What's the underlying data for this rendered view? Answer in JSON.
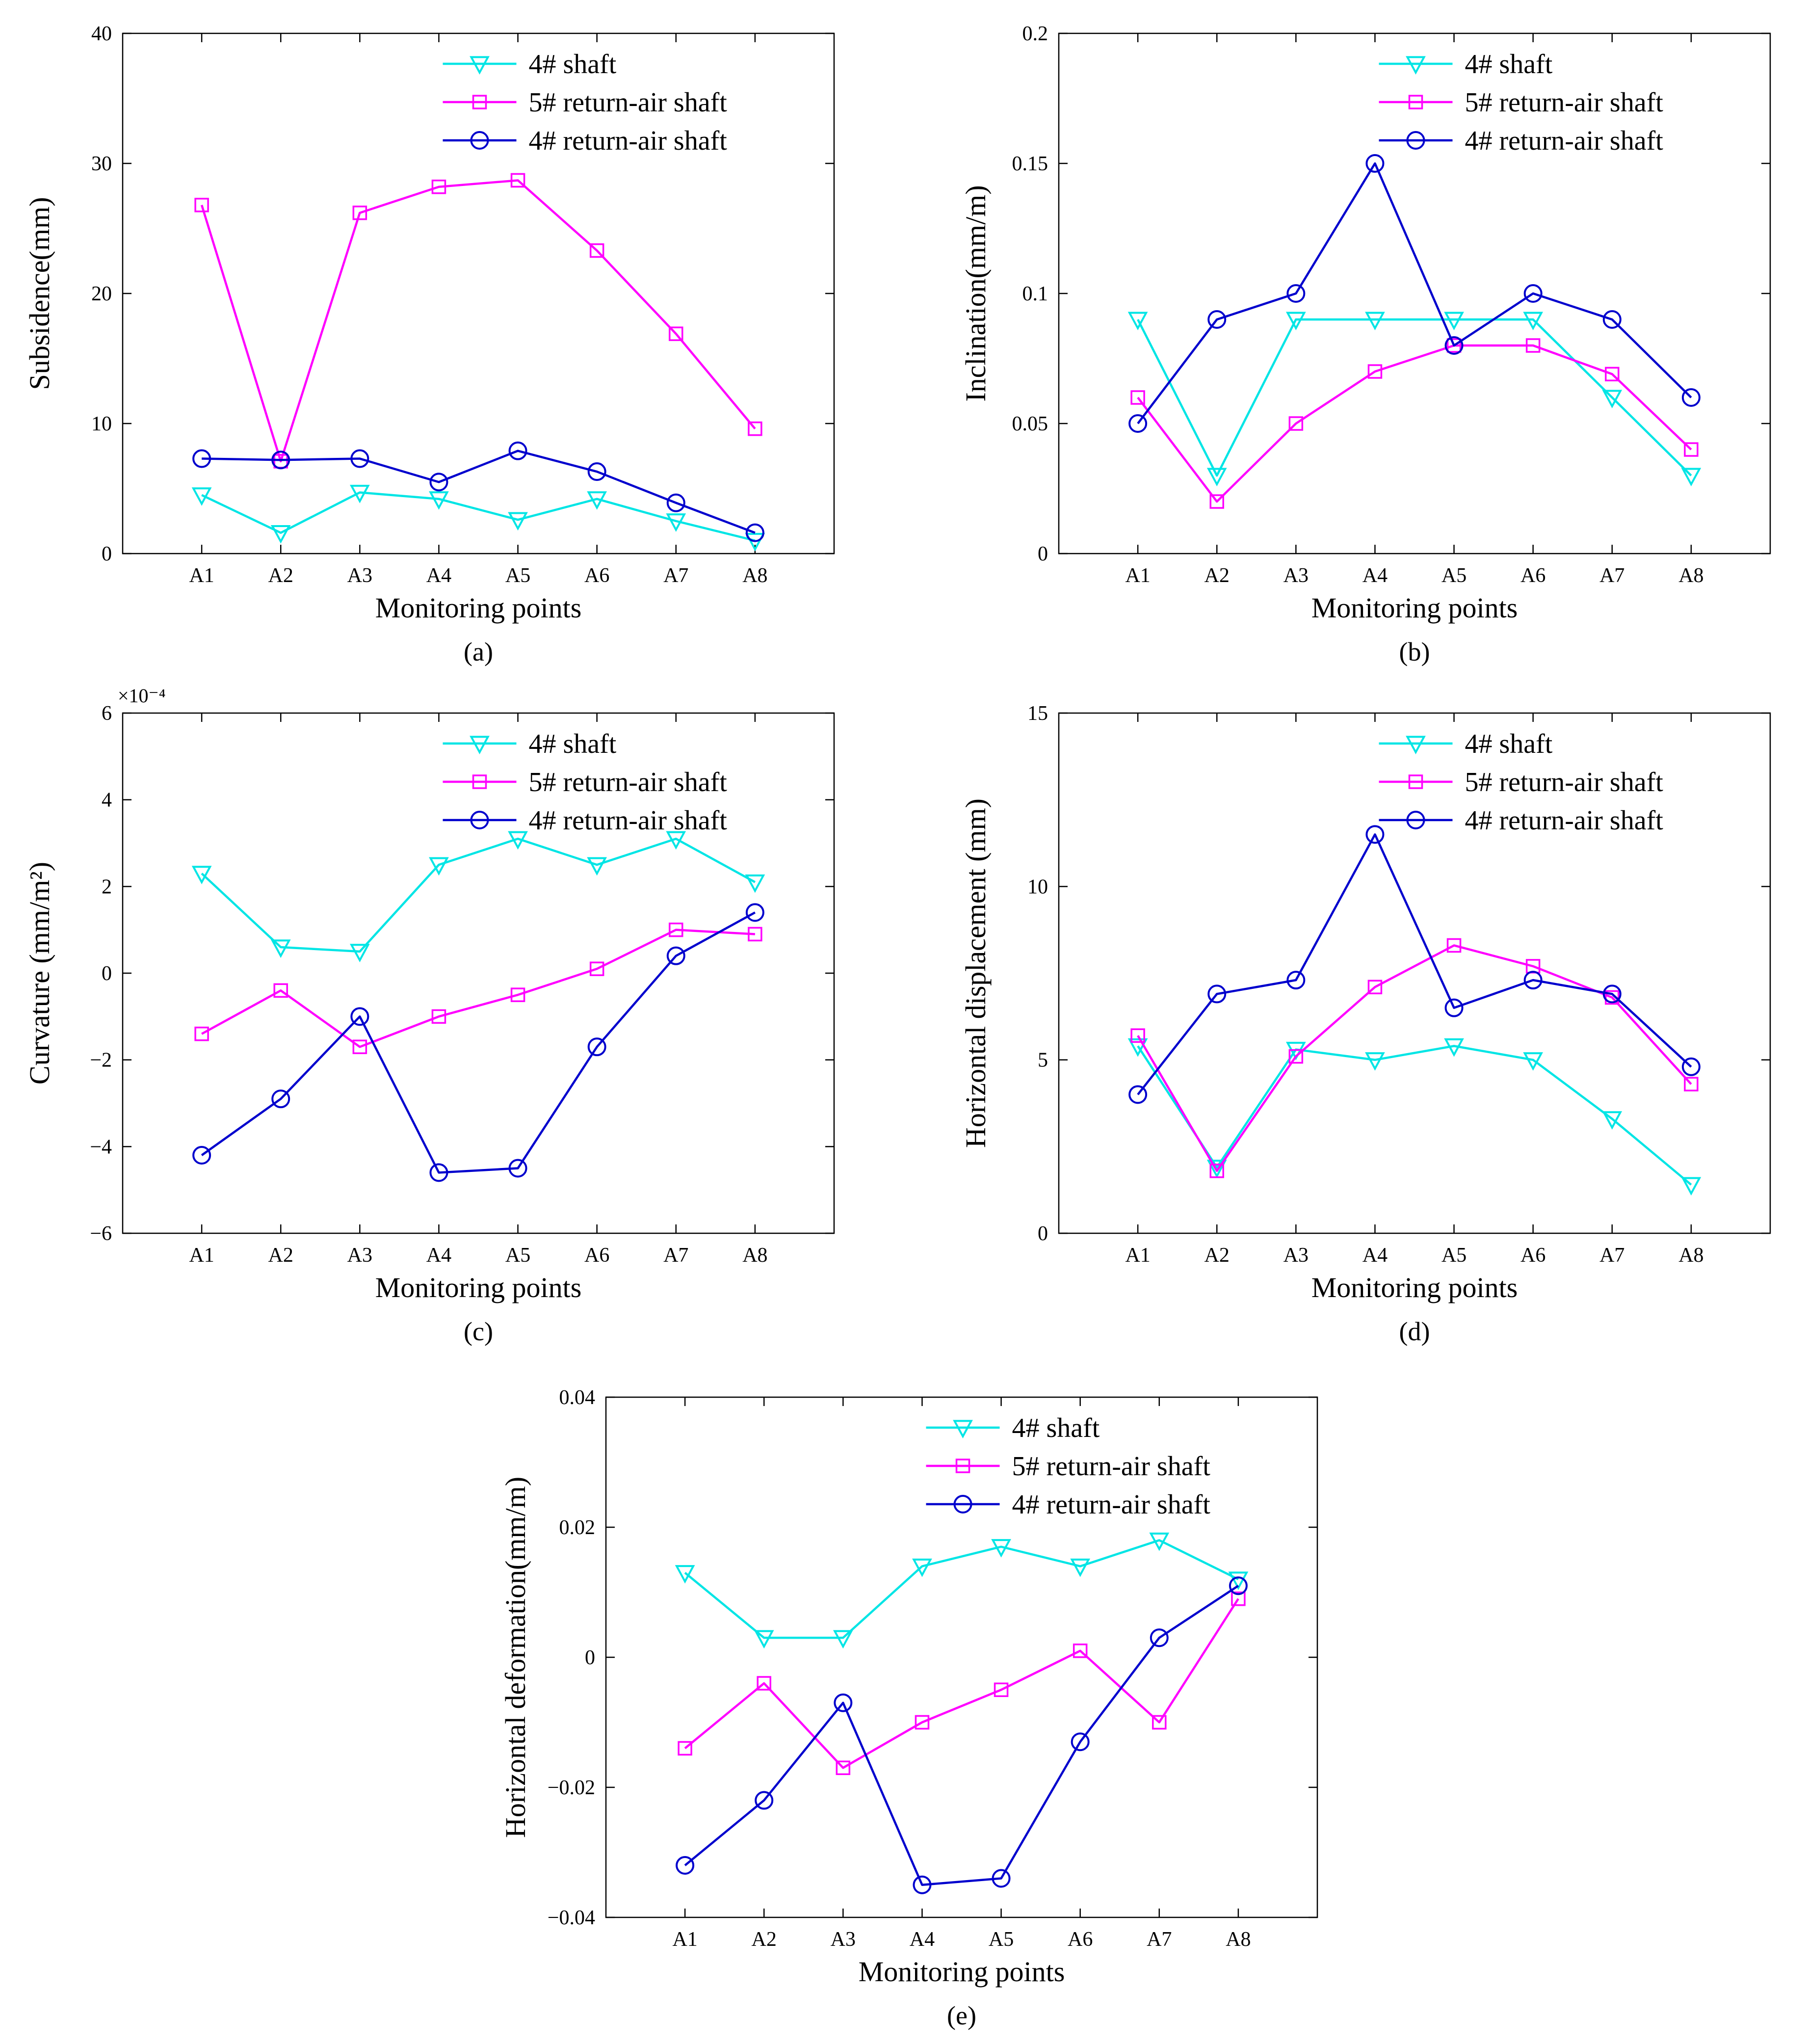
{
  "colors": {
    "shaft4": "#00e5e5",
    "return5": "#ff00ff",
    "return4": "#0000cd",
    "axis": "#000000",
    "background": "#ffffff"
  },
  "chart_data": [
    {
      "id": "a",
      "type": "line",
      "panel_label": "(a)",
      "title": "",
      "xlabel": "Monitoring points",
      "ylabel": "Subsidence(mm)",
      "categories": [
        "A1",
        "A2",
        "A3",
        "A4",
        "A5",
        "A6",
        "A7",
        "A8"
      ],
      "ylim": [
        0,
        40
      ],
      "yticks": [
        0,
        10,
        20,
        30,
        40
      ],
      "ytick_labels": [
        "0",
        "10",
        "20",
        "30",
        "40"
      ],
      "exponent_label": "",
      "grid": false,
      "legend_position": "top-right",
      "series": [
        {
          "name": "4# shaft",
          "marker": "triangle-down",
          "color_key": "shaft4",
          "values": [
            4.5,
            1.6,
            4.7,
            4.2,
            2.6,
            4.2,
            2.5,
            1.0
          ]
        },
        {
          "name": "5# return-air shaft",
          "marker": "square",
          "color_key": "return5",
          "values": [
            26.8,
            7.1,
            26.2,
            28.2,
            28.7,
            23.3,
            16.9,
            9.6
          ]
        },
        {
          "name": "4# return-air shaft",
          "marker": "circle",
          "color_key": "return4",
          "values": [
            7.3,
            7.2,
            7.3,
            5.5,
            7.9,
            6.3,
            3.9,
            1.6
          ]
        }
      ]
    },
    {
      "id": "b",
      "type": "line",
      "panel_label": "(b)",
      "title": "",
      "xlabel": "Monitoring points",
      "ylabel": "Inclination(mm/m)",
      "categories": [
        "A1",
        "A2",
        "A3",
        "A4",
        "A5",
        "A6",
        "A7",
        "A8"
      ],
      "ylim": [
        0,
        0.2
      ],
      "yticks": [
        0,
        0.05,
        0.1,
        0.15,
        0.2
      ],
      "ytick_labels": [
        "0",
        "0.05",
        "0.1",
        "0.15",
        "0.2"
      ],
      "exponent_label": "",
      "grid": false,
      "legend_position": "top-right",
      "series": [
        {
          "name": "4# shaft",
          "marker": "triangle-down",
          "color_key": "shaft4",
          "values": [
            0.09,
            0.03,
            0.09,
            0.09,
            0.09,
            0.09,
            0.06,
            0.03
          ]
        },
        {
          "name": "5# return-air shaft",
          "marker": "square",
          "color_key": "return5",
          "values": [
            0.06,
            0.02,
            0.05,
            0.07,
            0.08,
            0.08,
            0.069,
            0.04
          ]
        },
        {
          "name": "4# return-air shaft",
          "marker": "circle",
          "color_key": "return4",
          "values": [
            0.05,
            0.09,
            0.1,
            0.15,
            0.08,
            0.1,
            0.09,
            0.06
          ]
        }
      ]
    },
    {
      "id": "c",
      "type": "line",
      "panel_label": "(c)",
      "title": "",
      "xlabel": "Monitoring points",
      "ylabel": "Curvature (mm/m²)",
      "categories": [
        "A1",
        "A2",
        "A3",
        "A4",
        "A5",
        "A6",
        "A7",
        "A8"
      ],
      "ylim": [
        -6,
        6
      ],
      "yticks": [
        -6,
        -4,
        -2,
        0,
        2,
        4,
        6
      ],
      "ytick_labels": [
        "−6",
        "−4",
        "−2",
        "0",
        "2",
        "4",
        "6"
      ],
      "exponent_label": "×10⁻⁴",
      "grid": false,
      "legend_position": "top-right",
      "series": [
        {
          "name": "4# shaft",
          "marker": "triangle-down",
          "color_key": "shaft4",
          "values": [
            2.3,
            0.6,
            0.5,
            2.5,
            3.1,
            2.5,
            3.1,
            2.1
          ]
        },
        {
          "name": "5# return-air shaft",
          "marker": "square",
          "color_key": "return5",
          "values": [
            -1.4,
            -0.4,
            -1.7,
            -1.0,
            -0.5,
            0.1,
            1.0,
            0.9
          ]
        },
        {
          "name": "4# return-air shaft",
          "marker": "circle",
          "color_key": "return4",
          "values": [
            -4.2,
            -2.9,
            -1.0,
            -4.6,
            -4.5,
            -1.7,
            0.4,
            1.4
          ]
        }
      ]
    },
    {
      "id": "d",
      "type": "line",
      "panel_label": "(d)",
      "title": "",
      "xlabel": "Monitoring points",
      "ylabel": "Horizontal displacement (mm)",
      "categories": [
        "A1",
        "A2",
        "A3",
        "A4",
        "A5",
        "A6",
        "A7",
        "A8"
      ],
      "ylim": [
        0,
        15
      ],
      "yticks": [
        0,
        5,
        10,
        15
      ],
      "ytick_labels": [
        "0",
        "5",
        "10",
        "15"
      ],
      "exponent_label": "",
      "grid": false,
      "legend_position": "top-right",
      "series": [
        {
          "name": "4# shaft",
          "marker": "triangle-down",
          "color_key": "shaft4",
          "values": [
            5.4,
            1.9,
            5.3,
            5.0,
            5.4,
            5.0,
            3.3,
            1.4
          ]
        },
        {
          "name": "5# return-air shaft",
          "marker": "square",
          "color_key": "return5",
          "values": [
            5.7,
            1.8,
            5.1,
            7.1,
            8.3,
            7.7,
            6.8,
            4.3
          ]
        },
        {
          "name": "4# return-air shaft",
          "marker": "circle",
          "color_key": "return4",
          "values": [
            4.0,
            6.9,
            7.3,
            11.5,
            6.5,
            7.3,
            6.9,
            4.8
          ]
        }
      ]
    },
    {
      "id": "e",
      "type": "line",
      "panel_label": "(e)",
      "title": "",
      "xlabel": "Monitoring points",
      "ylabel": "Horizontal deformation(mm/m)",
      "categories": [
        "A1",
        "A2",
        "A3",
        "A4",
        "A5",
        "A6",
        "A7",
        "A8"
      ],
      "ylim": [
        -0.04,
        0.04
      ],
      "yticks": [
        -0.04,
        -0.02,
        0,
        0.02,
        0.04
      ],
      "ytick_labels": [
        "−0.04",
        "−0.02",
        "0",
        "0.02",
        "0.04"
      ],
      "exponent_label": "",
      "grid": false,
      "legend_position": "top-right",
      "series": [
        {
          "name": "4# shaft",
          "marker": "triangle-down",
          "color_key": "shaft4",
          "values": [
            0.013,
            0.003,
            0.003,
            0.014,
            0.017,
            0.014,
            0.018,
            0.012
          ]
        },
        {
          "name": "5# return-air shaft",
          "marker": "square",
          "color_key": "return5",
          "values": [
            -0.014,
            -0.004,
            -0.017,
            -0.01,
            -0.005,
            0.001,
            -0.01,
            0.009
          ]
        },
        {
          "name": "4# return-air shaft",
          "marker": "circle",
          "color_key": "return4",
          "values": [
            -0.032,
            -0.022,
            -0.007,
            -0.035,
            -0.034,
            -0.013,
            0.003,
            0.011
          ]
        }
      ]
    }
  ]
}
